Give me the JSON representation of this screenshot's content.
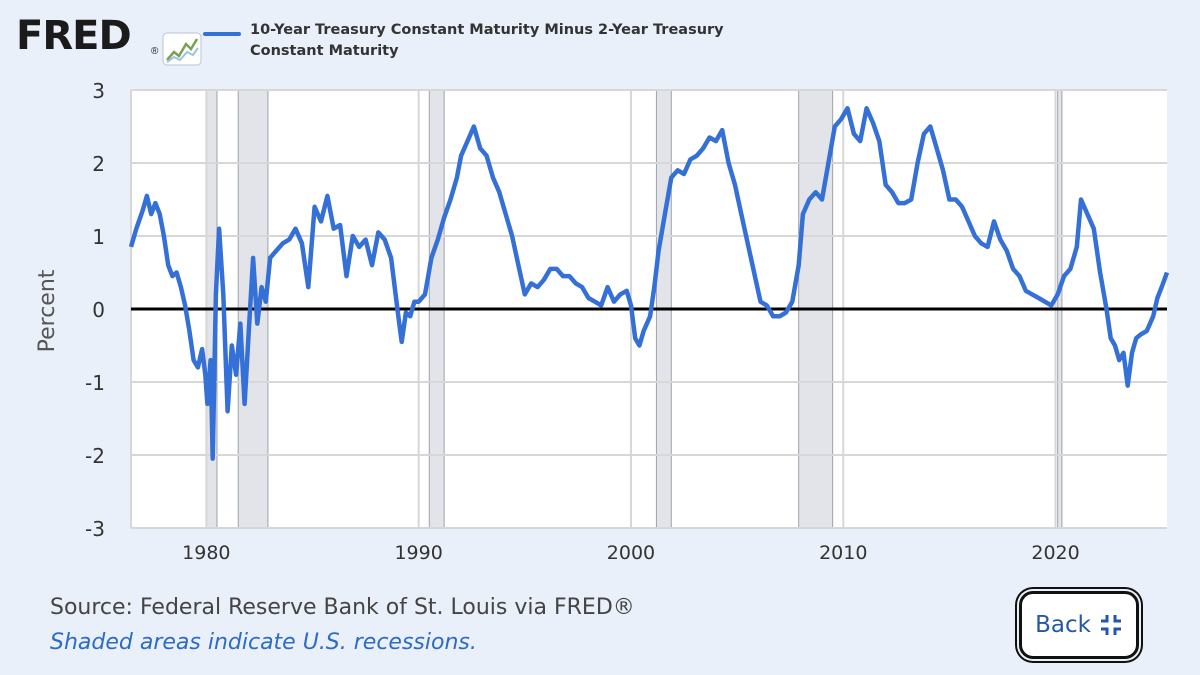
{
  "logo": {
    "text": "FRED",
    "reg": "®"
  },
  "legend": {
    "label": "10-Year Treasury Constant Maturity Minus 2-Year Treasury Constant Maturity"
  },
  "colors": {
    "line": "#3570d6",
    "recession": "#e2e4e9",
    "grid": "#d7d7d7",
    "zero": "#000000",
    "background": "#e9f0f9"
  },
  "footer": {
    "source": "Source: Federal Reserve Bank of St. Louis via FRED®",
    "note": "Shaded areas indicate U.S. recessions."
  },
  "back_button": {
    "label": "Back",
    "icon": "collapse-icon"
  },
  "chart_data": {
    "type": "line",
    "title": "",
    "xlabel": "",
    "ylabel": "Percent",
    "xlim": [
      1976.45,
      2025.25
    ],
    "ylim": [
      -3,
      3
    ],
    "x_ticks": [
      1980,
      1990,
      2000,
      2010,
      2020
    ],
    "y_ticks": [
      -3,
      -2,
      -1,
      0,
      1,
      2,
      3
    ],
    "grid": true,
    "zero_line": true,
    "legend_position": "top",
    "recessions": [
      [
        1980.0,
        1980.5
      ],
      [
        1981.5,
        1982.9
      ],
      [
        1990.5,
        1991.2
      ],
      [
        2001.2,
        2001.9
      ],
      [
        2007.9,
        2009.5
      ],
      [
        2020.1,
        2020.3
      ]
    ],
    "series": [
      {
        "name": "10-Year Treasury Constant Maturity Minus 2-Year Treasury Constant Maturity",
        "points": [
          [
            1976.45,
            0.85
          ],
          [
            1976.7,
            1.1
          ],
          [
            1977.0,
            1.35
          ],
          [
            1977.2,
            1.55
          ],
          [
            1977.4,
            1.3
          ],
          [
            1977.6,
            1.45
          ],
          [
            1977.8,
            1.3
          ],
          [
            1978.0,
            1.0
          ],
          [
            1978.2,
            0.6
          ],
          [
            1978.4,
            0.45
          ],
          [
            1978.6,
            0.5
          ],
          [
            1978.8,
            0.3
          ],
          [
            1979.0,
            0.05
          ],
          [
            1979.2,
            -0.3
          ],
          [
            1979.4,
            -0.7
          ],
          [
            1979.6,
            -0.8
          ],
          [
            1979.8,
            -0.55
          ],
          [
            1979.95,
            -0.9
          ],
          [
            1980.05,
            -1.3
          ],
          [
            1980.2,
            -0.7
          ],
          [
            1980.3,
            -2.05
          ],
          [
            1980.45,
            0.2
          ],
          [
            1980.6,
            1.1
          ],
          [
            1980.8,
            0.2
          ],
          [
            1981.0,
            -1.4
          ],
          [
            1981.2,
            -0.5
          ],
          [
            1981.4,
            -0.9
          ],
          [
            1981.6,
            -0.2
          ],
          [
            1981.8,
            -1.3
          ],
          [
            1982.0,
            -0.3
          ],
          [
            1982.2,
            0.7
          ],
          [
            1982.4,
            -0.2
          ],
          [
            1982.6,
            0.3
          ],
          [
            1982.8,
            0.1
          ],
          [
            1983.0,
            0.7
          ],
          [
            1983.3,
            0.8
          ],
          [
            1983.6,
            0.9
          ],
          [
            1983.9,
            0.95
          ],
          [
            1984.2,
            1.1
          ],
          [
            1984.5,
            0.9
          ],
          [
            1984.8,
            0.3
          ],
          [
            1985.1,
            1.4
          ],
          [
            1985.4,
            1.2
          ],
          [
            1985.7,
            1.55
          ],
          [
            1986.0,
            1.1
          ],
          [
            1986.3,
            1.15
          ],
          [
            1986.6,
            0.45
          ],
          [
            1986.9,
            1.0
          ],
          [
            1987.2,
            0.85
          ],
          [
            1987.5,
            0.95
          ],
          [
            1987.8,
            0.6
          ],
          [
            1988.1,
            1.05
          ],
          [
            1988.4,
            0.95
          ],
          [
            1988.7,
            0.7
          ],
          [
            1989.0,
            0.0
          ],
          [
            1989.2,
            -0.45
          ],
          [
            1989.4,
            -0.05
          ],
          [
            1989.6,
            -0.1
          ],
          [
            1989.8,
            0.1
          ],
          [
            1990.0,
            0.1
          ],
          [
            1990.3,
            0.2
          ],
          [
            1990.6,
            0.7
          ],
          [
            1990.9,
            0.95
          ],
          [
            1991.2,
            1.25
          ],
          [
            1991.5,
            1.5
          ],
          [
            1991.8,
            1.8
          ],
          [
            1992.0,
            2.1
          ],
          [
            1992.3,
            2.3
          ],
          [
            1992.6,
            2.5
          ],
          [
            1992.9,
            2.2
          ],
          [
            1993.2,
            2.1
          ],
          [
            1993.5,
            1.8
          ],
          [
            1993.8,
            1.6
          ],
          [
            1994.1,
            1.3
          ],
          [
            1994.4,
            1.0
          ],
          [
            1994.7,
            0.6
          ],
          [
            1995.0,
            0.2
          ],
          [
            1995.3,
            0.35
          ],
          [
            1995.6,
            0.3
          ],
          [
            1995.9,
            0.4
          ],
          [
            1996.2,
            0.55
          ],
          [
            1996.5,
            0.55
          ],
          [
            1996.8,
            0.45
          ],
          [
            1997.1,
            0.45
          ],
          [
            1997.4,
            0.35
          ],
          [
            1997.7,
            0.3
          ],
          [
            1998.0,
            0.15
          ],
          [
            1998.3,
            0.1
          ],
          [
            1998.6,
            0.05
          ],
          [
            1998.9,
            0.3
          ],
          [
            1999.2,
            0.1
          ],
          [
            1999.5,
            0.2
          ],
          [
            1999.8,
            0.25
          ],
          [
            2000.0,
            0.05
          ],
          [
            2000.2,
            -0.4
          ],
          [
            2000.4,
            -0.5
          ],
          [
            2000.6,
            -0.3
          ],
          [
            2000.9,
            -0.1
          ],
          [
            2001.1,
            0.3
          ],
          [
            2001.3,
            0.8
          ],
          [
            2001.6,
            1.3
          ],
          [
            2001.9,
            1.8
          ],
          [
            2002.2,
            1.9
          ],
          [
            2002.5,
            1.85
          ],
          [
            2002.8,
            2.05
          ],
          [
            2003.1,
            2.1
          ],
          [
            2003.4,
            2.2
          ],
          [
            2003.7,
            2.35
          ],
          [
            2004.0,
            2.3
          ],
          [
            2004.3,
            2.45
          ],
          [
            2004.6,
            2.0
          ],
          [
            2004.9,
            1.7
          ],
          [
            2005.2,
            1.3
          ],
          [
            2005.5,
            0.9
          ],
          [
            2005.8,
            0.5
          ],
          [
            2006.1,
            0.1
          ],
          [
            2006.4,
            0.05
          ],
          [
            2006.7,
            -0.1
          ],
          [
            2007.0,
            -0.1
          ],
          [
            2007.3,
            -0.05
          ],
          [
            2007.6,
            0.1
          ],
          [
            2007.9,
            0.6
          ],
          [
            2008.1,
            1.3
          ],
          [
            2008.4,
            1.5
          ],
          [
            2008.7,
            1.6
          ],
          [
            2009.0,
            1.5
          ],
          [
            2009.3,
            2.0
          ],
          [
            2009.6,
            2.5
          ],
          [
            2009.9,
            2.6
          ],
          [
            2010.2,
            2.75
          ],
          [
            2010.5,
            2.4
          ],
          [
            2010.8,
            2.3
          ],
          [
            2011.1,
            2.75
          ],
          [
            2011.4,
            2.55
          ],
          [
            2011.7,
            2.3
          ],
          [
            2012.0,
            1.7
          ],
          [
            2012.3,
            1.6
          ],
          [
            2012.6,
            1.45
          ],
          [
            2012.9,
            1.45
          ],
          [
            2013.2,
            1.5
          ],
          [
            2013.5,
            2.0
          ],
          [
            2013.8,
            2.4
          ],
          [
            2014.1,
            2.5
          ],
          [
            2014.4,
            2.2
          ],
          [
            2014.7,
            1.9
          ],
          [
            2015.0,
            1.5
          ],
          [
            2015.3,
            1.5
          ],
          [
            2015.6,
            1.4
          ],
          [
            2015.9,
            1.2
          ],
          [
            2016.2,
            1.0
          ],
          [
            2016.5,
            0.9
          ],
          [
            2016.8,
            0.85
          ],
          [
            2017.1,
            1.2
          ],
          [
            2017.4,
            0.95
          ],
          [
            2017.7,
            0.8
          ],
          [
            2018.0,
            0.55
          ],
          [
            2018.3,
            0.45
          ],
          [
            2018.6,
            0.25
          ],
          [
            2018.9,
            0.2
          ],
          [
            2019.2,
            0.15
          ],
          [
            2019.5,
            0.1
          ],
          [
            2019.8,
            0.05
          ],
          [
            2020.1,
            0.2
          ],
          [
            2020.4,
            0.45
          ],
          [
            2020.7,
            0.55
          ],
          [
            2021.0,
            0.85
          ],
          [
            2021.2,
            1.5
          ],
          [
            2021.5,
            1.3
          ],
          [
            2021.8,
            1.1
          ],
          [
            2022.1,
            0.5
          ],
          [
            2022.4,
            0.0
          ],
          [
            2022.6,
            -0.4
          ],
          [
            2022.8,
            -0.5
          ],
          [
            2023.0,
            -0.7
          ],
          [
            2023.2,
            -0.6
          ],
          [
            2023.4,
            -1.05
          ],
          [
            2023.6,
            -0.6
          ],
          [
            2023.8,
            -0.4
          ],
          [
            2024.0,
            -0.35
          ],
          [
            2024.3,
            -0.3
          ],
          [
            2024.6,
            -0.1
          ],
          [
            2024.8,
            0.15
          ],
          [
            2025.0,
            0.3
          ],
          [
            2025.25,
            0.5
          ]
        ]
      }
    ]
  }
}
